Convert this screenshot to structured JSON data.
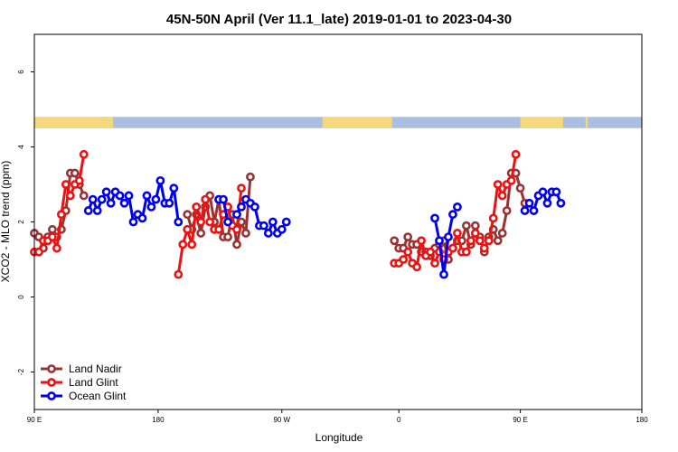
{
  "chart_data": {
    "type": "line",
    "title": "45N-50N April (Ver 11.1_late)   2019-01-01 to 2023-04-30",
    "xlabel": "Longitude",
    "ylabel": "XCO2 - MLO trend (ppm)",
    "xlim": [
      -90,
      180
    ],
    "ylim": [
      -3,
      7
    ],
    "x_ticks": [
      {
        "value": -90,
        "label": "90 E"
      },
      {
        "value": -35,
        "label": "180"
      },
      {
        "value": 20,
        "label": "90 W"
      },
      {
        "value": 72,
        "label": "0"
      },
      {
        "value": 126,
        "label": "90 E"
      },
      {
        "value": 180,
        "label": "180"
      }
    ],
    "y_ticks": [
      {
        "value": -2,
        "label": "-2"
      },
      {
        "value": 0,
        "label": "0"
      },
      {
        "value": 2,
        "label": "2"
      },
      {
        "value": 4,
        "label": "4"
      },
      {
        "value": 6,
        "label": "6"
      }
    ],
    "grid": false,
    "legend_position": "bottom-left",
    "land_ocean_band": {
      "y_range": [
        4.5,
        4.8
      ],
      "land_color": "#f5d77e",
      "ocean_color": "#a9bee0",
      "land_segments": [
        [
          -90,
          -59
        ],
        [
          -60,
          -59
        ],
        [
          -61,
          -58
        ],
        [
          -59,
          -56
        ],
        [
          -58,
          -55
        ],
        [
          38,
          69
        ],
        [
          126,
          145
        ],
        [
          155,
          156
        ]
      ]
    },
    "series": [
      {
        "name": "Land Nadir",
        "color": "#993333",
        "segments": [
          [
            [
              -90,
              1.7
            ],
            [
              -88,
              1.6
            ],
            [
              -86,
              1.3
            ],
            [
              -84,
              1.6
            ],
            [
              -82,
              1.8
            ],
            [
              -80,
              1.6
            ],
            [
              -78,
              1.8
            ],
            [
              -76,
              2.3
            ],
            [
              -74,
              3.3
            ],
            [
              -72,
              3.3
            ],
            [
              -70,
              3.0
            ],
            [
              -68,
              2.7
            ]
          ],
          [
            [
              -22,
              2.2
            ],
            [
              -20,
              1.8
            ],
            [
              -18,
              2.2
            ],
            [
              -16,
              1.7
            ],
            [
              -14,
              2.4
            ],
            [
              -12,
              2.7
            ],
            [
              -10,
              2.0
            ],
            [
              -8,
              2.6
            ],
            [
              -6,
              1.6
            ],
            [
              -4,
              1.6
            ],
            [
              -2,
              2.2
            ],
            [
              0,
              1.4
            ],
            [
              2,
              2.0
            ],
            [
              4,
              1.7
            ],
            [
              6,
              3.2
            ]
          ],
          [
            [
              70,
              1.5
            ],
            [
              72,
              1.3
            ],
            [
              74,
              1.3
            ],
            [
              76,
              1.6
            ],
            [
              78,
              1.4
            ],
            [
              80,
              1.4
            ],
            [
              82,
              1.2
            ],
            [
              84,
              1.2
            ],
            [
              86,
              1.1
            ],
            [
              88,
              1.3
            ],
            [
              90,
              1.4
            ],
            [
              92,
              1.5
            ],
            [
              94,
              1.0
            ],
            [
              96,
              1.3
            ],
            [
              98,
              1.5
            ],
            [
              100,
              1.5
            ],
            [
              102,
              1.9
            ],
            [
              104,
              1.4
            ],
            [
              106,
              1.9
            ],
            [
              108,
              1.6
            ],
            [
              110,
              1.2
            ],
            [
              112,
              1.6
            ],
            [
              114,
              1.8
            ],
            [
              116,
              1.5
            ],
            [
              118,
              1.7
            ],
            [
              120,
              2.3
            ],
            [
              122,
              3.3
            ],
            [
              124,
              3.3
            ],
            [
              126,
              2.9
            ],
            [
              128,
              2.5
            ]
          ]
        ]
      },
      {
        "name": "Land Glint",
        "color": "#ee1111",
        "segments": [
          [
            [
              -90,
              1.2
            ],
            [
              -88,
              1.2
            ],
            [
              -86,
              1.5
            ],
            [
              -84,
              1.5
            ],
            [
              -82,
              1.6
            ],
            [
              -80,
              1.3
            ],
            [
              -78,
              2.2
            ],
            [
              -76,
              3.0
            ],
            [
              -74,
              2.7
            ],
            [
              -72,
              3.0
            ],
            [
              -70,
              3.1
            ],
            [
              -68,
              3.8
            ]
          ],
          [
            [
              -26,
              0.6
            ],
            [
              -24,
              1.4
            ],
            [
              -22,
              1.8
            ],
            [
              -20,
              1.4
            ],
            [
              -18,
              2.4
            ],
            [
              -16,
              2.0
            ],
            [
              -14,
              2.6
            ],
            [
              -12,
              2.0
            ],
            [
              -10,
              1.8
            ],
            [
              -8,
              1.8
            ],
            [
              -6,
              2.2
            ],
            [
              -4,
              2.4
            ],
            [
              -2,
              1.9
            ],
            [
              0,
              1.8
            ],
            [
              2,
              2.9
            ]
          ],
          [
            [
              70,
              0.9
            ],
            [
              72,
              0.9
            ],
            [
              74,
              1.0
            ],
            [
              76,
              1.2
            ],
            [
              78,
              0.9
            ],
            [
              80,
              0.8
            ],
            [
              82,
              1.5
            ],
            [
              84,
              1.1
            ],
            [
              86,
              1.2
            ],
            [
              88,
              0.9
            ],
            [
              90,
              1.2
            ],
            [
              92,
              1.0
            ],
            [
              94,
              1.2
            ],
            [
              96,
              1.3
            ],
            [
              98,
              1.7
            ],
            [
              100,
              1.2
            ],
            [
              102,
              1.2
            ],
            [
              104,
              1.5
            ],
            [
              106,
              1.7
            ],
            [
              108,
              1.5
            ],
            [
              110,
              1.3
            ],
            [
              112,
              1.5
            ],
            [
              114,
              2.1
            ],
            [
              116,
              3.0
            ],
            [
              118,
              2.7
            ],
            [
              120,
              3.0
            ],
            [
              122,
              3.1
            ],
            [
              124,
              3.8
            ]
          ]
        ]
      },
      {
        "name": "Ocean Glint",
        "color": "#0000ee",
        "segments": [
          [
            [
              -66,
              2.3
            ],
            [
              -64,
              2.6
            ],
            [
              -62,
              2.3
            ],
            [
              -60,
              2.6
            ],
            [
              -58,
              2.8
            ],
            [
              -56,
              2.5
            ],
            [
              -54,
              2.8
            ],
            [
              -52,
              2.7
            ],
            [
              -50,
              2.5
            ],
            [
              -48,
              2.7
            ],
            [
              -46,
              2.0
            ],
            [
              -44,
              2.2
            ],
            [
              -42,
              2.1
            ],
            [
              -40,
              2.7
            ],
            [
              -38,
              2.4
            ],
            [
              -36,
              2.6
            ],
            [
              -34,
              3.1
            ],
            [
              -32,
              2.5
            ],
            [
              -30,
              2.5
            ],
            [
              -28,
              2.9
            ],
            [
              -26,
              2.0
            ]
          ],
          [
            [
              -8,
              2.6
            ],
            [
              -6,
              2.6
            ],
            [
              -4,
              2.0
            ]
          ],
          [
            [
              0,
              2.2
            ],
            [
              2,
              2.4
            ],
            [
              4,
              2.6
            ],
            [
              6,
              2.5
            ],
            [
              8,
              2.4
            ],
            [
              10,
              1.9
            ],
            [
              12,
              1.9
            ],
            [
              14,
              1.7
            ],
            [
              16,
              2.0
            ],
            [
              18,
              1.7
            ],
            [
              20,
              1.8
            ],
            [
              22,
              2.0
            ]
          ],
          [
            [
              88,
              2.1
            ],
            [
              90,
              1.5
            ],
            [
              92,
              0.6
            ],
            [
              94,
              1.6
            ],
            [
              96,
              2.2
            ]
          ],
          [
            [
              98,
              2.4
            ]
          ],
          [
            [
              128,
              2.3
            ],
            [
              130,
              2.5
            ],
            [
              132,
              2.3
            ],
            [
              134,
              2.7
            ],
            [
              136,
              2.8
            ],
            [
              138,
              2.5
            ],
            [
              140,
              2.8
            ],
            [
              142,
              2.8
            ],
            [
              144,
              2.5
            ]
          ]
        ]
      }
    ]
  }
}
